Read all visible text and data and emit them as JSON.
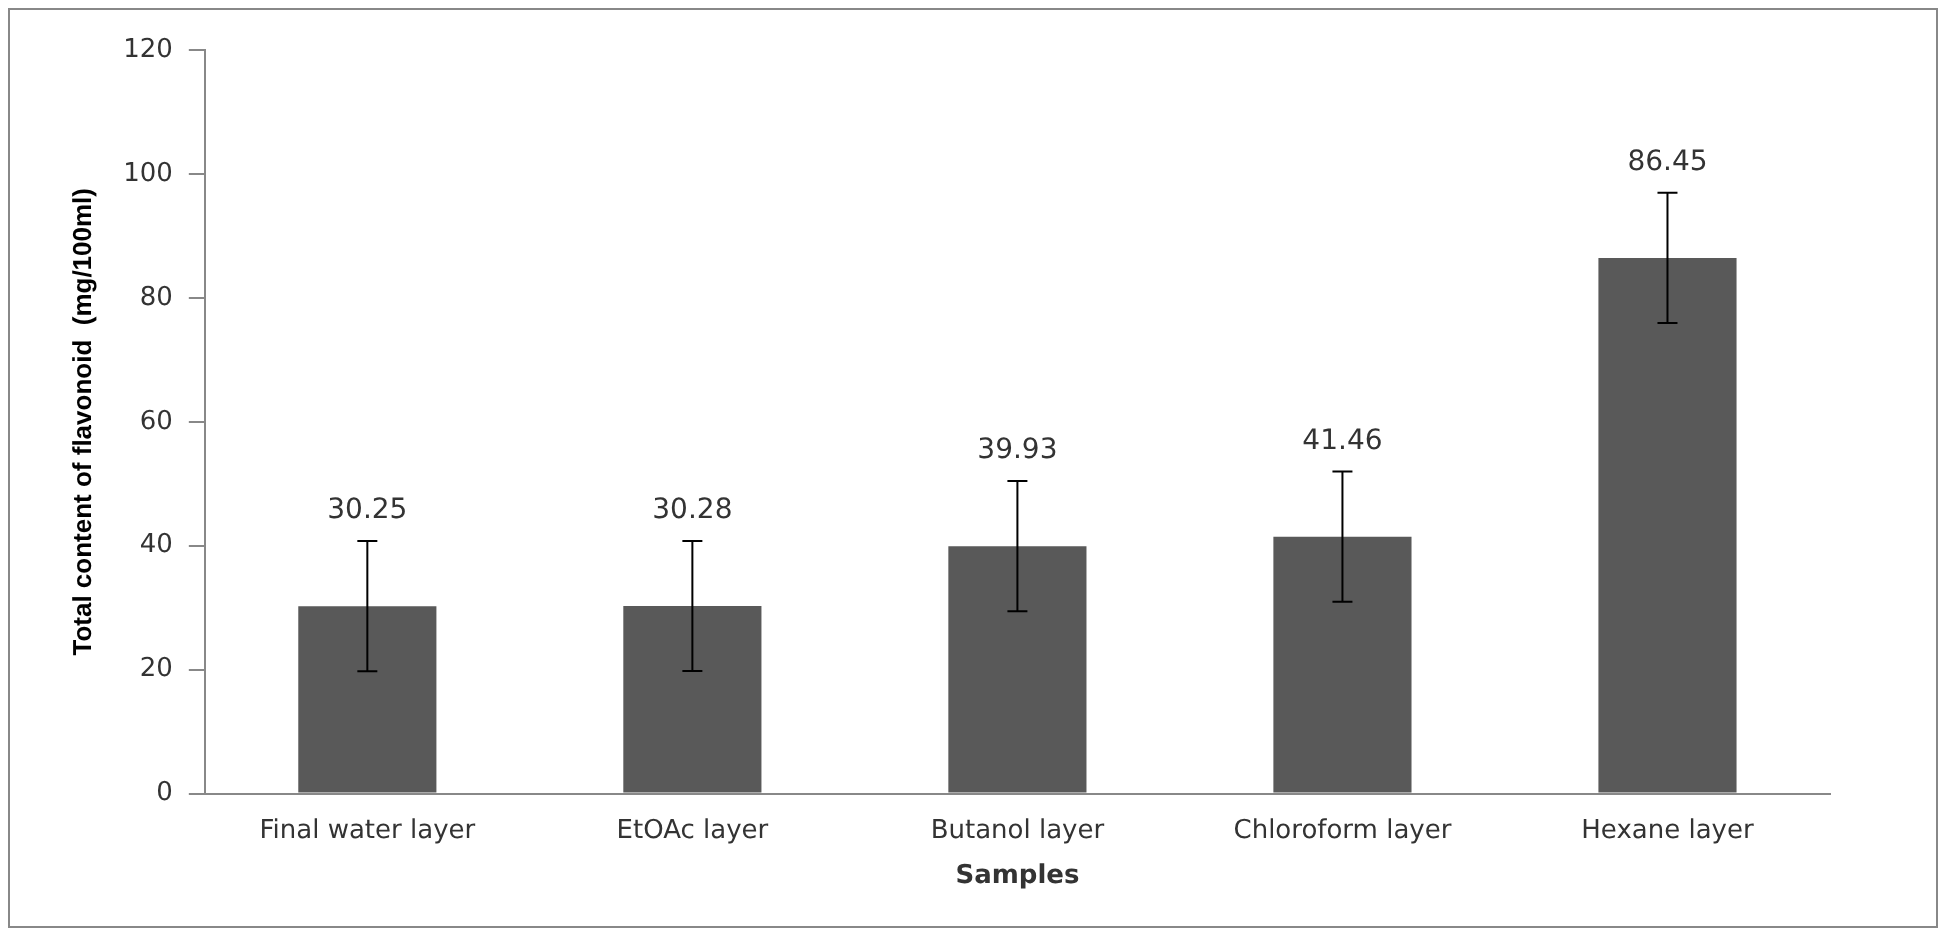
{
  "chart_data": {
    "type": "bar",
    "xlabel": "Samples",
    "ylabel": "Total content of flavonoid  (mg/100ml)",
    "categories": [
      "Final water layer",
      "EtOAc layer",
      "Butanol layer",
      "Chloroform layer",
      "Hexane layer"
    ],
    "values": [
      30.25,
      30.28,
      39.93,
      41.46,
      86.45
    ],
    "errors": [
      10.5,
      10.5,
      10.5,
      10.5,
      10.5
    ],
    "color": "#595959",
    "ylim": [
      0,
      120
    ],
    "yticks": [
      0,
      20,
      40,
      60,
      80,
      100,
      120
    ],
    "grid": false,
    "legend": false,
    "data_labels": true
  }
}
